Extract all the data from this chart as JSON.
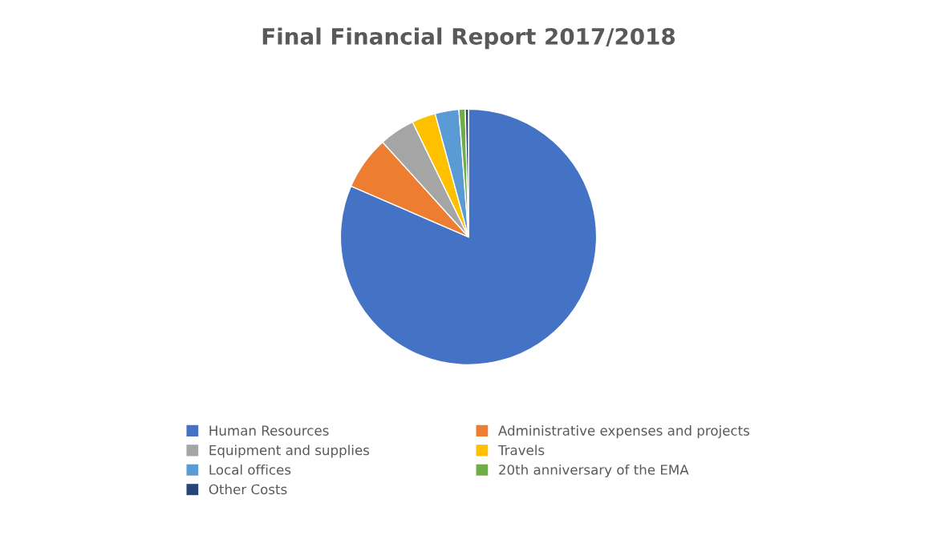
{
  "chart_data": {
    "type": "pie",
    "title": "Final Financial Report 2017/2018",
    "categories": [
      "Human Resources",
      "Administrative expenses and projects",
      "Equipment and supplies",
      "Travels",
      "Local offices",
      "20th anniversary of the EMA",
      "Other Costs"
    ],
    "values": [
      81.5,
      6.8,
      4.5,
      3.0,
      3.0,
      0.8,
      0.4
    ],
    "colors": [
      "#4472c4",
      "#ed7d31",
      "#a5a5a5",
      "#ffc000",
      "#5b9bd5",
      "#70ad47",
      "#264478"
    ],
    "legend": "bottom"
  }
}
